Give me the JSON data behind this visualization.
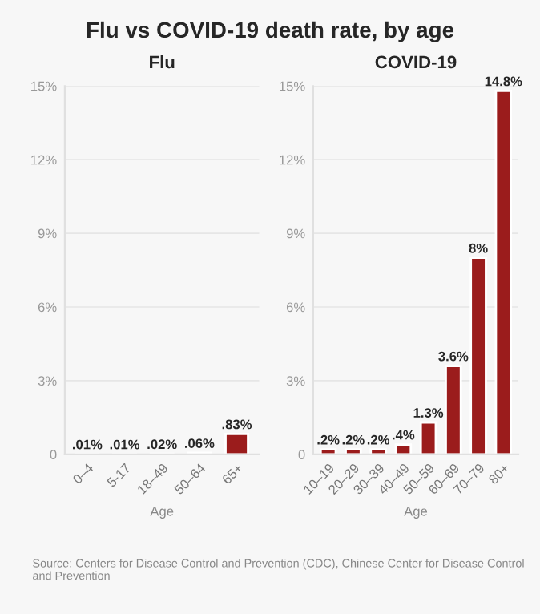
{
  "chart_data": [
    {
      "type": "bar",
      "title": "Flu vs COVID-19 death rate, by age",
      "subtitle": "Flu",
      "xlabel": "Age",
      "categories": [
        "0–4",
        "5-17",
        "18–49",
        "50–64",
        "65+"
      ],
      "values": [
        0.01,
        0.01,
        0.02,
        0.06,
        0.83
      ],
      "value_labels": [
        ".01%",
        ".01%",
        ".02%",
        ".06%",
        ".83%"
      ],
      "color": "#9b1c1c",
      "ylim": [
        0,
        15
      ],
      "yticks": [
        0,
        {
          "value": 3,
          "label": "3%"
        },
        {
          "value": 6,
          "label": "6%"
        },
        {
          "value": 9,
          "label": "9%"
        },
        {
          "value": 12,
          "label": "12%"
        },
        {
          "value": 15,
          "label": "15%"
        }
      ],
      "grid": "y",
      "annotations": [
        "Source: Centers for Disease Control and Prevention (CDC), Chinese Center for Disease Control and Prevention"
      ]
    },
    {
      "type": "bar",
      "subtitle": "COVID-19",
      "xlabel": "Age",
      "categories": [
        "10–19",
        "20–29",
        "30–39",
        "40–49",
        "50–59",
        "60–69",
        "70–79",
        "80+"
      ],
      "values": [
        0.2,
        0.2,
        0.2,
        0.4,
        1.3,
        3.6,
        8,
        14.8
      ],
      "value_labels": [
        ".2%",
        ".2%",
        ".2%",
        ".4%",
        "1.3%",
        "3.6%",
        "8%",
        "14.8%"
      ],
      "color": "#9b1c1c",
      "ylim": [
        0,
        15
      ],
      "yticks": [
        0,
        {
          "value": 3,
          "label": "3%"
        },
        {
          "value": 6,
          "label": "6%"
        },
        {
          "value": 9,
          "label": "9%"
        },
        {
          "value": 12,
          "label": "12%"
        },
        {
          "value": 15,
          "label": "15%"
        }
      ],
      "grid": "y"
    }
  ]
}
